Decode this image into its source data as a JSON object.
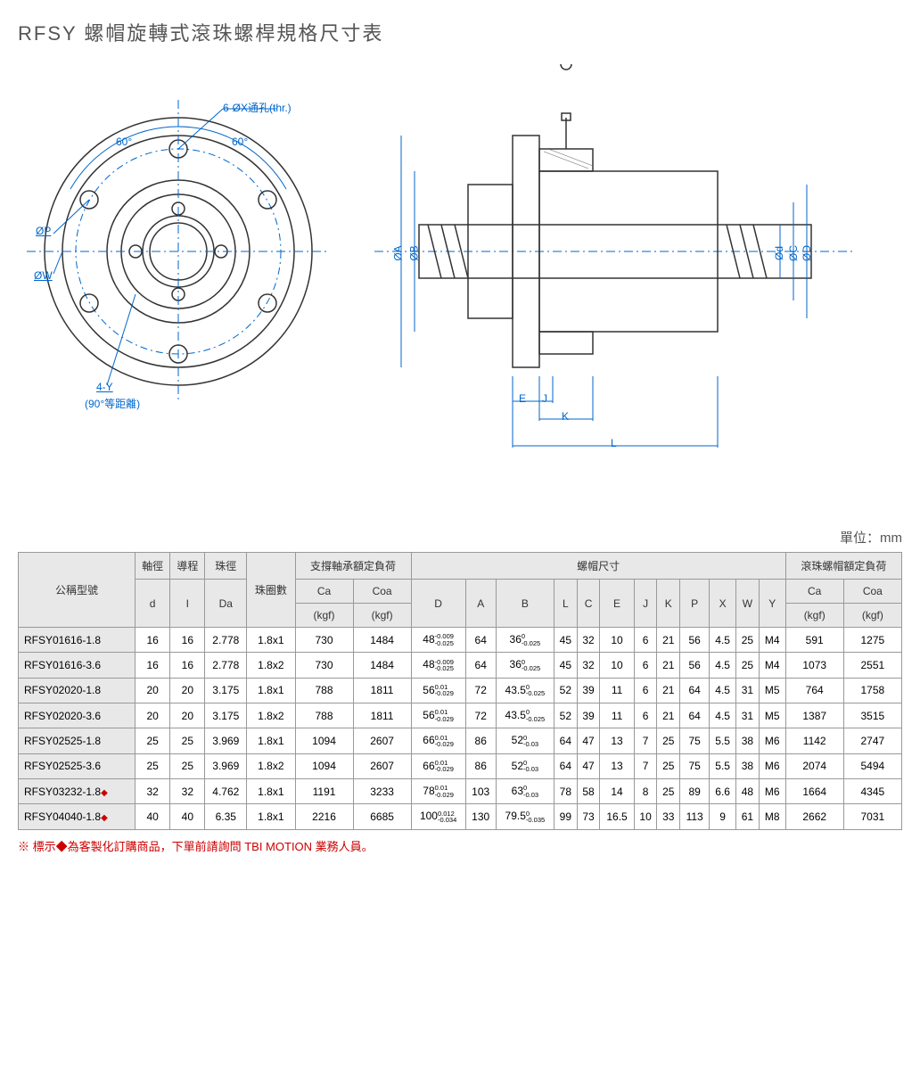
{
  "title": "RFSY 螺帽旋轉式滾珠螺桿規格尺寸表",
  "unit_label": "單位：mm",
  "diagram_labels": {
    "thrhole": "6-ØX通孔(thr.)",
    "angle60a": "60°",
    "angle60b": "60°",
    "op": "ØP",
    "ow": "ØW",
    "foury": "4-Y",
    "equidist": "(90°等距離)",
    "oa": "ØA",
    "ob": "ØB",
    "od": "Ød",
    "oc": "ØC",
    "odd": "ØD",
    "e": "E",
    "j": "J",
    "k": "K",
    "l": "L"
  },
  "headers": {
    "model": "公稱型號",
    "shaft_dia": "軸徑",
    "d": "d",
    "lead": "導程",
    "I": "I",
    "ball_dia": "珠徑",
    "Da": "Da",
    "circuits": "珠圈數",
    "bearing_load": "支撐軸承額定負荷",
    "Ca": "Ca",
    "Ca_u": "(kgf)",
    "Coa": "Coa",
    "Coa_u": "(kgf)",
    "nut_dim": "螺帽尺寸",
    "D": "D",
    "A": "A",
    "B": "B",
    "L": "L",
    "C": "C",
    "E": "E",
    "J": "J",
    "K": "K",
    "P": "P",
    "X": "X",
    "W": "W",
    "Y": "Y",
    "nut_load": "滾珠螺帽額定負荷"
  },
  "rows": [
    {
      "m": "RFSY01616-1.8",
      "d": "16",
      "I": "16",
      "Da": "2.778",
      "cir": "1.8x1",
      "Ca": "730",
      "Coa": "1484",
      "D": "48",
      "Dt": "-0.009/-0.025",
      "A": "64",
      "B": "36",
      "Bt": "0/-0.025",
      "L": "45",
      "C": "32",
      "E": "10",
      "J": "6",
      "K": "21",
      "P": "56",
      "X": "4.5",
      "W": "25",
      "Y": "M4",
      "nCa": "591",
      "nCoa": "1275"
    },
    {
      "m": "RFSY01616-3.6",
      "d": "16",
      "I": "16",
      "Da": "2.778",
      "cir": "1.8x2",
      "Ca": "730",
      "Coa": "1484",
      "D": "48",
      "Dt": "-0.009/-0.025",
      "A": "64",
      "B": "36",
      "Bt": "0/-0.025",
      "L": "45",
      "C": "32",
      "E": "10",
      "J": "6",
      "K": "21",
      "P": "56",
      "X": "4.5",
      "W": "25",
      "Y": "M4",
      "nCa": "1073",
      "nCoa": "2551"
    },
    {
      "m": "RFSY02020-1.8",
      "d": "20",
      "I": "20",
      "Da": "3.175",
      "cir": "1.8x1",
      "Ca": "788",
      "Coa": "1811",
      "D": "56",
      "Dt": "0.01/-0.029",
      "A": "72",
      "B": "43.5",
      "Bt": "0/-0.025",
      "L": "52",
      "C": "39",
      "E": "11",
      "J": "6",
      "K": "21",
      "P": "64",
      "X": "4.5",
      "W": "31",
      "Y": "M5",
      "nCa": "764",
      "nCoa": "1758"
    },
    {
      "m": "RFSY02020-3.6",
      "d": "20",
      "I": "20",
      "Da": "3.175",
      "cir": "1.8x2",
      "Ca": "788",
      "Coa": "1811",
      "D": "56",
      "Dt": "0.01/-0.029",
      "A": "72",
      "B": "43.5",
      "Bt": "0/-0.025",
      "L": "52",
      "C": "39",
      "E": "11",
      "J": "6",
      "K": "21",
      "P": "64",
      "X": "4.5",
      "W": "31",
      "Y": "M5",
      "nCa": "1387",
      "nCoa": "3515"
    },
    {
      "m": "RFSY02525-1.8",
      "d": "25",
      "I": "25",
      "Da": "3.969",
      "cir": "1.8x1",
      "Ca": "1094",
      "Coa": "2607",
      "D": "66",
      "Dt": "0.01/-0.029",
      "A": "86",
      "B": "52",
      "Bt": "0/-0.03",
      "L": "64",
      "C": "47",
      "E": "13",
      "J": "7",
      "K": "25",
      "P": "75",
      "X": "5.5",
      "W": "38",
      "Y": "M6",
      "nCa": "1142",
      "nCoa": "2747"
    },
    {
      "m": "RFSY02525-3.6",
      "d": "25",
      "I": "25",
      "Da": "3.969",
      "cir": "1.8x2",
      "Ca": "1094",
      "Coa": "2607",
      "D": "66",
      "Dt": "0.01/-0.029",
      "A": "86",
      "B": "52",
      "Bt": "0/-0.03",
      "L": "64",
      "C": "47",
      "E": "13",
      "J": "7",
      "K": "25",
      "P": "75",
      "X": "5.5",
      "W": "38",
      "Y": "M6",
      "nCa": "2074",
      "nCoa": "5494"
    },
    {
      "m": "RFSY03232-1.8",
      "dia": true,
      "d": "32",
      "I": "32",
      "Da": "4.762",
      "cir": "1.8x1",
      "Ca": "1191",
      "Coa": "3233",
      "D": "78",
      "Dt": "0.01/-0.029",
      "A": "103",
      "B": "63",
      "Bt": "0/-0.03",
      "L": "78",
      "C": "58",
      "E": "14",
      "J": "8",
      "K": "25",
      "P": "89",
      "X": "6.6",
      "W": "48",
      "Y": "M6",
      "nCa": "1664",
      "nCoa": "4345"
    },
    {
      "m": "RFSY04040-1.8",
      "dia": true,
      "d": "40",
      "I": "40",
      "Da": "6.35",
      "cir": "1.8x1",
      "Ca": "2216",
      "Coa": "6685",
      "D": "100",
      "Dt": "0.012/-0.034",
      "A": "130",
      "B": "79.5",
      "Bt": "0/-0.035",
      "L": "99",
      "C": "73",
      "E": "16.5",
      "J": "10",
      "K": "33",
      "P": "113",
      "X": "9",
      "W": "61",
      "Y": "M8",
      "nCa": "2662",
      "nCoa": "7031"
    }
  ],
  "note": "※ 標示◆為客製化訂購商品，下單前請詢問 TBI MOTION 業務人員。"
}
